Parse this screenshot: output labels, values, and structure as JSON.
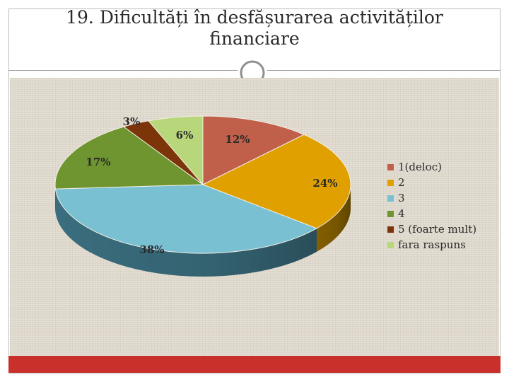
{
  "slide": {
    "title_line1": "19. Dificultăți în desfășurarea activităților",
    "title_line2": "financiare"
  },
  "colors": {
    "accent_bar": "#c9302c",
    "panel": "#ded8cc"
  },
  "chart_data": {
    "type": "pie",
    "title": "",
    "style": "3d",
    "legend_position": "right",
    "categories": [
      "1(deloc)",
      "2",
      "3",
      "4",
      "5 (foarte mult)",
      "fara raspuns"
    ],
    "values": [
      12,
      24,
      38,
      17,
      3,
      6
    ],
    "unit": "%",
    "colors": [
      "#c0604a",
      "#dfa000",
      "#78c0d2",
      "#6f9530",
      "#7c3509",
      "#b8d77a"
    ],
    "side_colors": [
      "#7e3a2b",
      "#8a6400",
      "#3d7384",
      "#455f1c",
      "#4a1e05",
      "#7c9650"
    ]
  }
}
